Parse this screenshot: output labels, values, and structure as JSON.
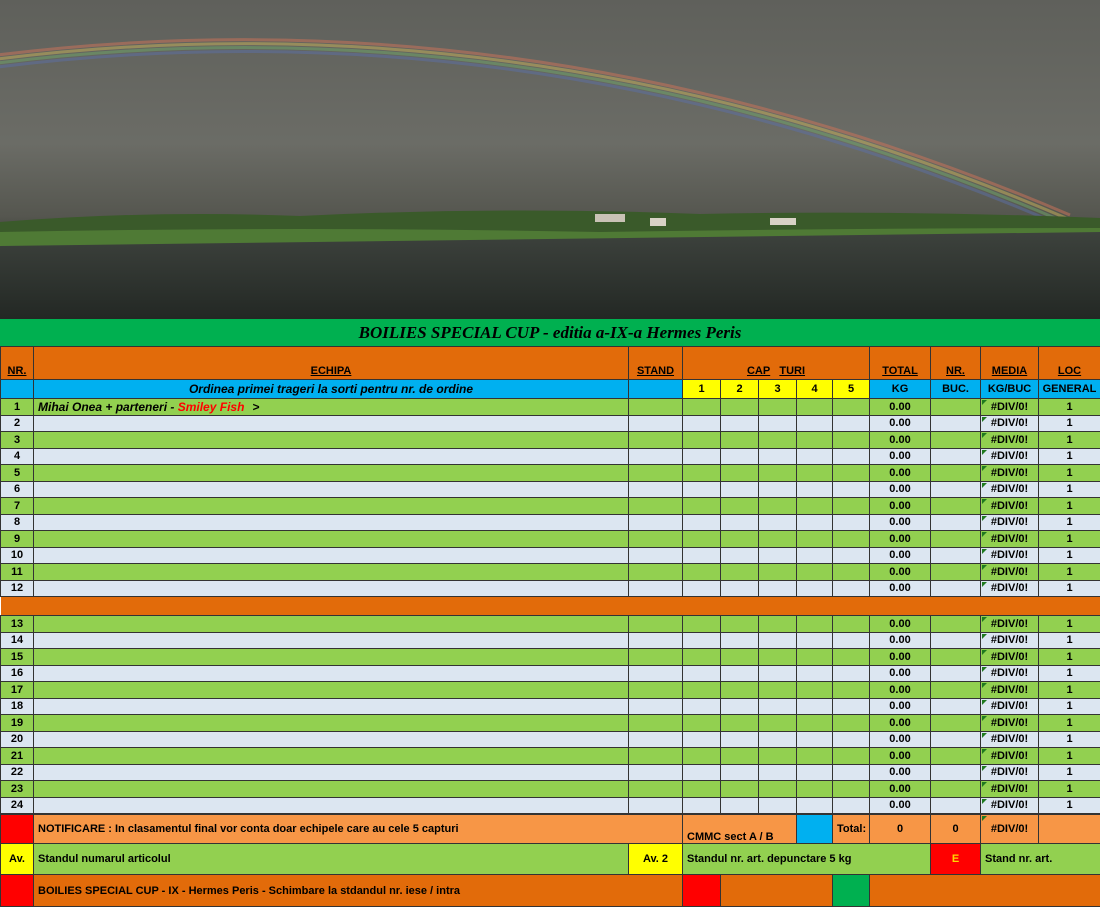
{
  "photo": {
    "alt": "rainbow over lake"
  },
  "title": "BOILIES SPECIAL CUP - editia a-IX-a Hermes Peris",
  "header": {
    "nr": "NR.",
    "echipa": "ECHIPA",
    "stand": "STAND",
    "cap": "CAP",
    "turi": "TURI",
    "total": "TOTAL",
    "nr2": "NR.",
    "media": "MEDIA",
    "loc": "LOC"
  },
  "subheader": {
    "ordinea": "Ordinea primei trageri la sorti pentru nr. de ordine",
    "rounds": [
      "1",
      "2",
      "3",
      "4",
      "5"
    ],
    "kg": "KG",
    "buc": "BUC.",
    "kgbuc": "KG/BUC",
    "general": "GENERAL"
  },
  "team1": {
    "name": "Mihai Onea + parteneri - ",
    "sponsor": "Smiley Fish",
    "arrow": ">"
  },
  "rows_a": [
    {
      "nr": "1",
      "total": "0.00",
      "media": "#DIV/0!",
      "loc": "1"
    },
    {
      "nr": "2",
      "total": "0.00",
      "media": "#DIV/0!",
      "loc": "1"
    },
    {
      "nr": "3",
      "total": "0.00",
      "media": "#DIV/0!",
      "loc": "1"
    },
    {
      "nr": "4",
      "total": "0.00",
      "media": "#DIV/0!",
      "loc": "1"
    },
    {
      "nr": "5",
      "total": "0.00",
      "media": "#DIV/0!",
      "loc": "1"
    },
    {
      "nr": "6",
      "total": "0.00",
      "media": "#DIV/0!",
      "loc": "1"
    },
    {
      "nr": "7",
      "total": "0.00",
      "media": "#DIV/0!",
      "loc": "1"
    },
    {
      "nr": "8",
      "total": "0.00",
      "media": "#DIV/0!",
      "loc": "1"
    },
    {
      "nr": "9",
      "total": "0.00",
      "media": "#DIV/0!",
      "loc": "1"
    },
    {
      "nr": "10",
      "total": "0.00",
      "media": "#DIV/0!",
      "loc": "1"
    },
    {
      "nr": "11",
      "total": "0.00",
      "media": "#DIV/0!",
      "loc": "1"
    },
    {
      "nr": "12",
      "total": "0.00",
      "media": "#DIV/0!",
      "loc": "1"
    }
  ],
  "rows_b": [
    {
      "nr": "13",
      "total": "0.00",
      "media": "#DIV/0!",
      "loc": "1"
    },
    {
      "nr": "14",
      "total": "0.00",
      "media": "#DIV/0!",
      "loc": "1"
    },
    {
      "nr": "15",
      "total": "0.00",
      "media": "#DIV/0!",
      "loc": "1"
    },
    {
      "nr": "16",
      "total": "0.00",
      "media": "#DIV/0!",
      "loc": "1"
    },
    {
      "nr": "17",
      "total": "0.00",
      "media": "#DIV/0!",
      "loc": "1"
    },
    {
      "nr": "18",
      "total": "0.00",
      "media": "#DIV/0!",
      "loc": "1"
    },
    {
      "nr": "19",
      "total": "0.00",
      "media": "#DIV/0!",
      "loc": "1"
    },
    {
      "nr": "20",
      "total": "0.00",
      "media": "#DIV/0!",
      "loc": "1"
    },
    {
      "nr": "21",
      "total": "0.00",
      "media": "#DIV/0!",
      "loc": "1"
    },
    {
      "nr": "22",
      "total": "0.00",
      "media": "#DIV/0!",
      "loc": "1"
    },
    {
      "nr": "23",
      "total": "0.00",
      "media": "#DIV/0!",
      "loc": "1"
    },
    {
      "nr": "24",
      "total": "0.00",
      "media": "#DIV/0!",
      "loc": "1"
    }
  ],
  "footer": {
    "notificare": "NOTIFICARE :     In clasamentul final vor conta doar echipele care au cele 5 capturi",
    "cmmc": "CMMC sect  A / B",
    "total_label": "Total:",
    "total_kg": "0",
    "total_buc": "0",
    "total_media": "#DIV/0!",
    "av1": "Av.",
    "standul_numarul": "Standul numarul              articolul",
    "av2": "Av. 2",
    "standul_nr": "Standul  nr.      art.      depunctare 5 kg",
    "e": "E",
    "stand_nr_art": "Stand nr.                art.",
    "banner": "BOILIES SPECIAL CUP - IX - Hermes Peris - Schimbare la stdandul  nr.            iese / intra"
  },
  "colors": {
    "green_title": "#00b050",
    "orange_header": "#e26b0a",
    "blue_header": "#00b0f0",
    "row_green": "#92d050",
    "row_light": "#dce6f1",
    "yellow": "#ffff00",
    "red": "#ff0000"
  }
}
